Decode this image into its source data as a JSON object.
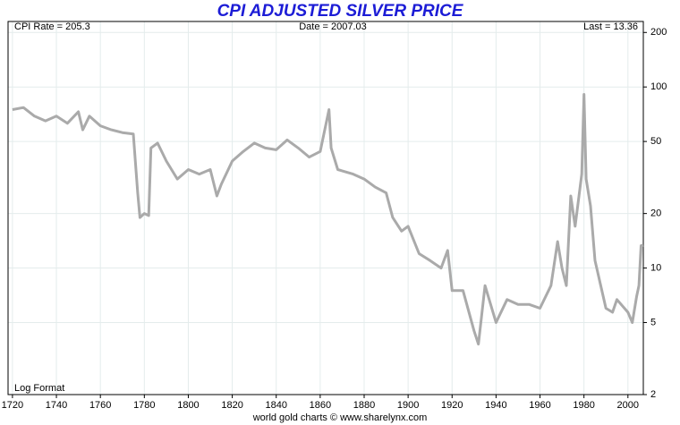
{
  "chart_data": {
    "type": "line",
    "title": "CPI ADJUSTED SILVER PRICE",
    "annotations": [
      "CPI Rate = 205.3",
      "Date = 2007.03",
      "Last = 13.36",
      "Log Format"
    ],
    "source": "world gold charts © www.sharelynx.com",
    "x": [
      1720,
      1725,
      1730,
      1735,
      1740,
      1745,
      1750,
      1752,
      1755,
      1760,
      1765,
      1770,
      1775,
      1777,
      1778,
      1780,
      1782,
      1783,
      1786,
      1790,
      1795,
      1800,
      1805,
      1810,
      1813,
      1815,
      1820,
      1825,
      1830,
      1835,
      1840,
      1845,
      1850,
      1855,
      1860,
      1864,
      1865,
      1868,
      1875,
      1880,
      1885,
      1890,
      1893,
      1897,
      1900,
      1905,
      1910,
      1915,
      1918,
      1920,
      1925,
      1930,
      1932,
      1935,
      1940,
      1945,
      1950,
      1955,
      1960,
      1965,
      1968,
      1970,
      1972,
      1974,
      1976,
      1979,
      1980,
      1981,
      1983,
      1985,
      1990,
      1993,
      1995,
      2000,
      2002,
      2004,
      2005,
      2006,
      2007
    ],
    "series": [
      {
        "name": "CPI adjusted silver",
        "color": "#aaaaaa",
        "values": [
          75,
          77,
          69,
          65,
          69,
          63,
          73,
          58,
          69,
          61,
          58,
          56,
          55,
          26,
          19,
          20,
          19.5,
          46,
          49,
          39,
          31,
          35,
          33,
          35,
          25,
          29,
          39,
          44,
          49,
          46,
          45,
          51,
          46,
          41,
          44,
          75,
          46,
          35,
          33,
          31,
          28,
          26,
          19,
          16,
          17,
          12,
          11,
          10,
          12.5,
          7.5,
          7.5,
          4.5,
          3.8,
          8,
          5,
          6.7,
          6.3,
          6.3,
          6,
          8,
          14,
          10,
          8,
          25,
          17,
          33,
          91,
          31,
          22,
          11,
          6,
          5.7,
          6.7,
          5.7,
          5,
          7,
          8,
          13.3,
          13.36
        ]
      }
    ],
    "xlim": [
      1718,
      2007
    ],
    "xticks": [
      1720,
      1740,
      1760,
      1780,
      1800,
      1820,
      1840,
      1860,
      1880,
      1900,
      1920,
      1940,
      1960,
      1980,
      2000
    ],
    "ylim": [
      2,
      230
    ],
    "yticks": [
      2,
      5,
      10,
      20,
      50,
      100,
      200
    ],
    "log_y": true,
    "grid": true
  }
}
